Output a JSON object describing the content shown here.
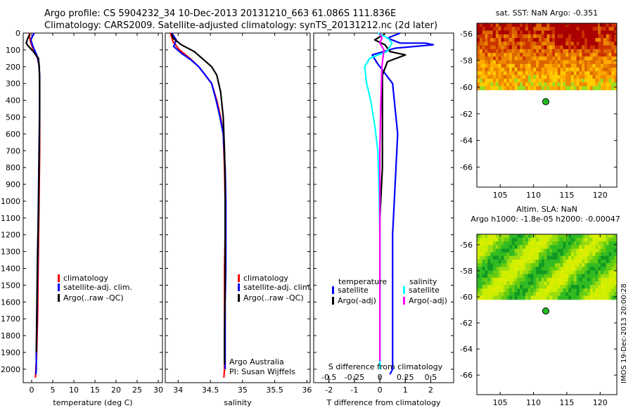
{
  "title": {
    "line1": "Argo profile: CS 5904232_34 10-Dec-2013 20131210_663 61.086S 111.836E",
    "line2": "Climatology: CARS2009. Satellite-adjusted climatology: synTS_20131212.nc (2d later)"
  },
  "credit": {
    "line1": "Argo Australia",
    "line2": "PI: Susan Wijffels"
  },
  "stamp": "IMOS 19-Dec-2013 20:00:28",
  "colors": {
    "red": "#ff0000",
    "blue": "#0000ff",
    "black": "#000000",
    "cyan": "#00ffff",
    "magenta": "#ff00ff",
    "map_sst": [
      "#aa0000",
      "#cc3300",
      "#dd6600",
      "#ee8800",
      "#ffaa00",
      "#ffcc00",
      "#99dd22",
      "#44bb22"
    ],
    "map_sla": [
      "#119922",
      "#33bb22",
      "#66cc11",
      "#99dd11",
      "#ccee00",
      "#ddee00",
      "#55bb99"
    ]
  },
  "chart_data": [
    {
      "type": "line",
      "panel": "temperature",
      "xlabel": "temperature (deg C)",
      "xlim": [
        -2,
        31
      ],
      "xticks": [
        0,
        5,
        10,
        15,
        20,
        25,
        30
      ],
      "ylim": [
        2080,
        0
      ],
      "yticks": [
        0,
        100,
        200,
        300,
        400,
        500,
        600,
        700,
        800,
        900,
        1000,
        1100,
        1200,
        1300,
        1400,
        1500,
        1600,
        1700,
        1800,
        1900,
        2000
      ],
      "legend": [
        "climatology",
        "satellite-adj. clim.",
        "Argo(..raw -QC)"
      ],
      "legend_loc": "lower-right",
      "series": [
        {
          "name": "climatology",
          "color": "red",
          "x": [
            -0.6,
            -0.3,
            0.4,
            1.4,
            1.8,
            1.9,
            1.9,
            1.9,
            1.8,
            1.7,
            1.6,
            1.5,
            1.4,
            1.3,
            1.2,
            1.1,
            1.0,
            0.9
          ],
          "y": [
            0,
            50,
            100,
            150,
            200,
            300,
            500,
            700,
            900,
            1100,
            1300,
            1500,
            1700,
            1800,
            1900,
            1950,
            2000,
            2050
          ]
        },
        {
          "name": "satellite-adj. clim.",
          "color": "blue",
          "x": [
            0.6,
            -0.2,
            0.3,
            1.2,
            1.7,
            1.9,
            1.9,
            1.8,
            1.7,
            1.6,
            1.5,
            1.4,
            1.3,
            1.2,
            1.1,
            1.1,
            1.0
          ],
          "y": [
            0,
            40,
            80,
            130,
            180,
            250,
            400,
            600,
            800,
            1000,
            1200,
            1400,
            1600,
            1800,
            1900,
            2000,
            2030
          ]
        },
        {
          "name": "Argo(..raw -QC)",
          "color": "black",
          "x": [
            -0.4,
            -0.9,
            -1.3,
            -0.7,
            0.4,
            1.6,
            1.8,
            1.9,
            1.9,
            1.8,
            1.7,
            1.6,
            1.4,
            1.3,
            1.2,
            1.1
          ],
          "y": [
            5,
            30,
            60,
            80,
            110,
            150,
            200,
            300,
            500,
            700,
            900,
            1100,
            1300,
            1500,
            1700,
            1900
          ]
        }
      ]
    },
    {
      "type": "line",
      "panel": "salinity",
      "xlabel": "salinity",
      "xlim": [
        33.8,
        36.05
      ],
      "xticks": [
        34,
        34.5,
        35,
        35.5,
        36
      ],
      "ylim": [
        2080,
        0
      ],
      "legend": [
        "climatology",
        "satellite-adj. clim.",
        "Argo(..raw -QC)"
      ],
      "legend_loc": "lower-right",
      "series": [
        {
          "name": "climatology",
          "color": "red",
          "x": [
            33.88,
            33.92,
            34.02,
            34.18,
            34.32,
            34.42,
            34.52,
            34.6,
            34.66,
            34.7,
            34.72,
            34.73,
            34.73,
            34.72,
            34.72,
            34.72,
            34.72,
            34.71
          ],
          "y": [
            0,
            50,
            100,
            150,
            200,
            250,
            300,
            400,
            500,
            600,
            800,
            1000,
            1200,
            1400,
            1600,
            1800,
            2000,
            2050
          ]
        },
        {
          "name": "satellite-adj. clim.",
          "color": "blue",
          "x": [
            33.9,
            33.97,
            33.93,
            34.05,
            34.2,
            34.32,
            34.42,
            34.52,
            34.59,
            34.65,
            34.7,
            34.73,
            34.74,
            34.74,
            34.74,
            34.73,
            34.73,
            34.73
          ],
          "y": [
            0,
            40,
            80,
            120,
            160,
            200,
            250,
            300,
            400,
            500,
            600,
            800,
            1000,
            1200,
            1400,
            1600,
            1800,
            2000
          ]
        },
        {
          "name": "Argo(..raw -QC)",
          "color": "black",
          "x": [
            33.9,
            33.92,
            34.05,
            34.25,
            34.4,
            34.52,
            34.6,
            34.66,
            34.7,
            34.72,
            34.73,
            34.73,
            34.73,
            34.72,
            34.72
          ],
          "y": [
            5,
            30,
            70,
            110,
            160,
            200,
            250,
            350,
            500,
            700,
            900,
            1200,
            1500,
            1800,
            1970
          ]
        }
      ]
    },
    {
      "type": "line",
      "panel": "differences",
      "xlabel": "T difference from climatology",
      "xlabel2": "S difference from climatology",
      "xlim": [
        -2.6,
        2.9
      ],
      "xticks": [
        -2,
        -1,
        0,
        1,
        2
      ],
      "x2lim": [
        -0.65,
        0.725
      ],
      "x2ticks": [
        -0.5,
        -0.25,
        0,
        0.25,
        0.5
      ],
      "x2ticklabels": [
        "-0.5",
        "-0.25",
        "0",
        "0.25",
        "0.5"
      ],
      "ylim": [
        2080,
        0
      ],
      "legend_temperature_title": "temperature",
      "legend_salinity_title": "salinity",
      "legend": [
        "satellite",
        "Argo(-adj)",
        "satellite",
        "Argo(-adj)"
      ],
      "legend_loc": "lower",
      "series": [
        {
          "name": "satellite",
          "group": "temperature",
          "color": "blue",
          "x": [
            0.8,
            0.3,
            0.8,
            1.8,
            2.1,
            0.6,
            -0.3,
            -0.1,
            0.5,
            0.7,
            0.6,
            0.5,
            0.5,
            0.5,
            0.5,
            0.4
          ],
          "y": [
            0,
            30,
            60,
            60,
            70,
            90,
            130,
            180,
            300,
            600,
            900,
            1200,
            1500,
            1800,
            2000,
            2030
          ]
        },
        {
          "name": "Argo(-adj)",
          "group": "temperature",
          "color": "black",
          "x": [
            0.2,
            -0.2,
            0.2,
            0.4,
            1.0,
            0.3,
            0.1,
            0.1,
            0.1,
            0.0,
            0.0,
            0.0,
            0.0
          ],
          "y": [
            5,
            40,
            70,
            110,
            130,
            170,
            250,
            500,
            800,
            1100,
            1400,
            1700,
            1950
          ]
        },
        {
          "name": "satellite",
          "group": "salinity",
          "color": "cyan",
          "x": [
            -0.02,
            0.08,
            0.12,
            0.07,
            -0.1,
            -0.15,
            -0.13,
            -0.09,
            -0.05,
            -0.02,
            -0.01,
            0.0,
            0.0,
            0.0
          ],
          "y": [
            0,
            30,
            60,
            110,
            150,
            200,
            300,
            400,
            550,
            700,
            900,
            1200,
            1600,
            2000
          ]
        },
        {
          "name": "Argo(-adj)",
          "group": "salinity",
          "color": "magenta",
          "x": [
            0.0,
            0.02,
            0.0,
            0.04,
            0.03,
            0.02,
            0.01,
            0.0,
            0.0,
            0.0,
            0.0
          ],
          "y": [
            5,
            30,
            60,
            100,
            150,
            200,
            400,
            700,
            1100,
            1500,
            1950
          ]
        }
      ]
    },
    {
      "type": "heatmap",
      "panel": "sst-map",
      "title": "sat. SST: NaN Argo: -0.351",
      "xlim": [
        101.5,
        122.5
      ],
      "xticks": [
        105,
        110,
        115,
        120
      ],
      "ylim": [
        -67.5,
        -55.2
      ],
      "yticks": [
        -56,
        -58,
        -60,
        -62,
        -64,
        -66
      ],
      "data_lat_range": [
        -60.2,
        -55.2
      ],
      "argo_point": {
        "lon": 111.836,
        "lat": -61.086
      },
      "palette": "map_sst"
    },
    {
      "type": "heatmap",
      "panel": "sla-map",
      "title": "Altim. SLA: NaN",
      "subtitle": "Argo h1000: -1.8e-05 h2000: -0.00047",
      "xlim": [
        101.5,
        122.5
      ],
      "xticks": [
        105,
        110,
        115,
        120
      ],
      "ylim": [
        -67.5,
        -55.2
      ],
      "yticks": [
        -56,
        -58,
        -60,
        -62,
        -64,
        -66
      ],
      "data_lat_range": [
        -60.2,
        -55.2
      ],
      "argo_point": {
        "lon": 111.836,
        "lat": -61.086
      },
      "palette": "map_sla"
    }
  ]
}
